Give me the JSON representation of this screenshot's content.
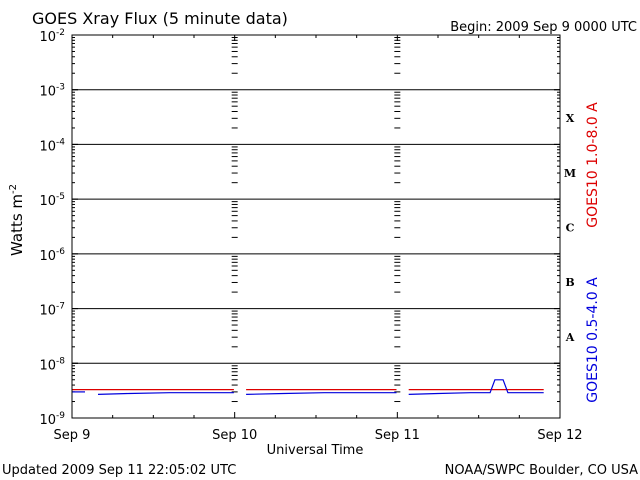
{
  "chart_data": {
    "type": "line",
    "title": "GOES Xray Flux (5 minute data)",
    "begin_label": "Begin:  2009 Sep 9 0000 UTC",
    "xlabel": "Universal Time",
    "ylabel": "Watts m",
    "ylabel_exponent": "-2",
    "updated": "Updated 2009 Sep 11 22:05:02 UTC",
    "credit": "NOAA/SWPC Boulder, CO USA",
    "x_ticks": [
      "Sep 9",
      "Sep 10",
      "Sep 11",
      "Sep 12"
    ],
    "x_range_days": [
      0,
      3
    ],
    "y_log": true,
    "y_range_exp": [
      -9,
      -2
    ],
    "y_tick_base": "10",
    "y_tick_exponents": [
      "-9",
      "-8",
      "-7",
      "-6",
      "-5",
      "-4",
      "-3",
      "-2"
    ],
    "flare_classes": [
      {
        "label": "A",
        "exp": -8
      },
      {
        "label": "B",
        "exp": -7
      },
      {
        "label": "C",
        "exp": -6
      },
      {
        "label": "M",
        "exp": -5
      },
      {
        "label": "X",
        "exp": -4
      }
    ],
    "series": [
      {
        "name": "GOES10 1.0-8.0 A",
        "color": "#dd0000",
        "segments": [
          [
            [
              0.0,
              3.3e-09
            ],
            [
              0.995,
              3.3e-09
            ]
          ],
          [
            [
              1.07,
              3.3e-09
            ],
            [
              1.995,
              3.3e-09
            ]
          ],
          [
            [
              2.07,
              3.3e-09
            ],
            [
              2.9,
              3.3e-09
            ]
          ]
        ]
      },
      {
        "name": "GOES10 0.5-4.0 A",
        "color": "#0000dd",
        "segments": [
          [
            [
              0.0,
              3e-09
            ],
            [
              0.08,
              3e-09
            ]
          ],
          [
            [
              0.16,
              2.7e-09
            ],
            [
              0.35,
              2.8e-09
            ],
            [
              0.6,
              2.9e-09
            ],
            [
              0.995,
              2.9e-09
            ]
          ],
          [
            [
              1.07,
              2.7e-09
            ],
            [
              1.3,
              2.8e-09
            ],
            [
              1.55,
              2.9e-09
            ],
            [
              1.995,
              2.9e-09
            ]
          ],
          [
            [
              2.07,
              2.7e-09
            ],
            [
              2.25,
              2.8e-09
            ],
            [
              2.45,
              2.9e-09
            ],
            [
              2.57,
              2.9e-09
            ],
            [
              2.6,
              5e-09
            ],
            [
              2.65,
              5e-09
            ],
            [
              2.68,
              2.9e-09
            ],
            [
              2.9,
              2.9e-09
            ]
          ]
        ]
      }
    ],
    "colors": {
      "background": "#ffffff",
      "axes": "#000000",
      "long_channel": "#dd0000",
      "short_channel": "#0000dd"
    }
  }
}
